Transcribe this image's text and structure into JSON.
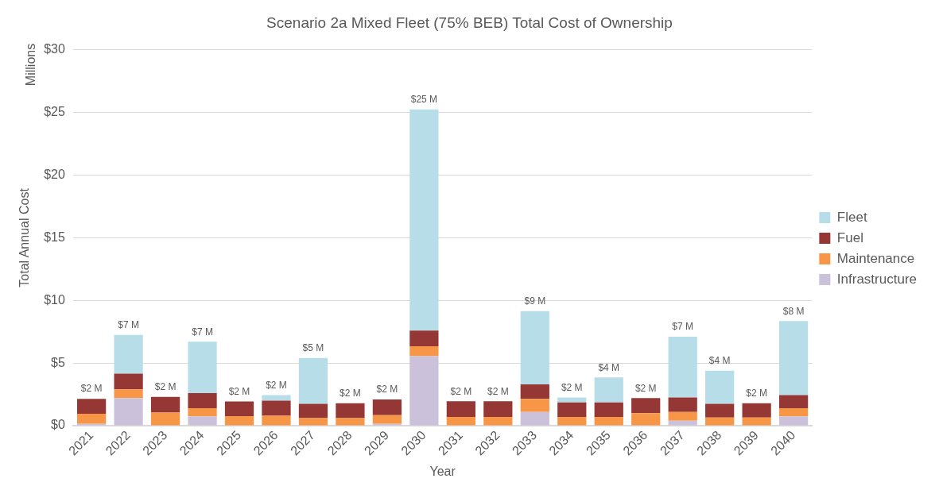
{
  "chart_data": {
    "type": "bar",
    "title": "Scenario 2a Mixed Fleet (75% BEB) Total Cost of Ownership",
    "xlabel": "Year",
    "ylabel": "Total Annual Cost",
    "annotations": [
      "Millions"
    ],
    "categories": [
      "2021",
      "2022",
      "2023",
      "2024",
      "2025",
      "2026",
      "2027",
      "2028",
      "2029",
      "2030",
      "2031",
      "2032",
      "2033",
      "2034",
      "2035",
      "2036",
      "2037",
      "2038",
      "2039",
      "2040"
    ],
    "stacked": true,
    "series": [
      {
        "name": "Infrastructure",
        "color": "#ccc1da",
        "values": [
          0.15,
          2.2,
          0,
          0.75,
          0,
          0,
          0,
          0,
          0.15,
          5.55,
          0,
          0,
          1.1,
          0,
          0,
          0,
          0.4,
          0,
          0,
          0.75
        ]
      },
      {
        "name": "Maintenance",
        "color": "#f79646",
        "values": [
          0.8,
          0.7,
          1.05,
          0.65,
          0.77,
          0.8,
          0.6,
          0.6,
          0.7,
          0.8,
          0.7,
          0.7,
          1.05,
          0.7,
          0.7,
          1.0,
          0.7,
          0.65,
          0.65,
          0.65
        ]
      },
      {
        "name": "Fuel",
        "color": "#953735",
        "values": [
          1.2,
          1.25,
          1.25,
          1.2,
          1.17,
          1.2,
          1.15,
          1.2,
          1.25,
          1.25,
          1.25,
          1.25,
          1.15,
          1.15,
          1.15,
          1.2,
          1.15,
          1.1,
          1.15,
          1.05
        ]
      },
      {
        "name": "Fleet",
        "color": "#b7dde8",
        "values": [
          0,
          3.1,
          0,
          4.1,
          0,
          0.45,
          3.65,
          0,
          0,
          17.65,
          0,
          0,
          5.85,
          0.4,
          2.0,
          0,
          4.85,
          2.65,
          0,
          5.9
        ]
      }
    ],
    "totals": [
      "$2 M",
      "$7 M",
      "$2 M",
      "$7 M",
      "$2 M",
      "$2 M",
      "$5 M",
      "$2 M",
      "$2 M",
      "$25 M",
      "$2 M",
      "$2 M",
      "$9 M",
      "$2 M",
      "$4 M",
      "$2 M",
      "$7 M",
      "$4 M",
      "$2 M",
      "$8 M"
    ],
    "ylim": [
      0,
      30
    ],
    "yticks": [
      {
        "value": 0,
        "label": "$0"
      },
      {
        "value": 5,
        "label": "$5"
      },
      {
        "value": 10,
        "label": "$10"
      },
      {
        "value": 15,
        "label": "$15"
      },
      {
        "value": 20,
        "label": "$20"
      },
      {
        "value": 25,
        "label": "$25"
      },
      {
        "value": 30,
        "label": "$30"
      }
    ],
    "grid": "y",
    "legend": "right"
  }
}
